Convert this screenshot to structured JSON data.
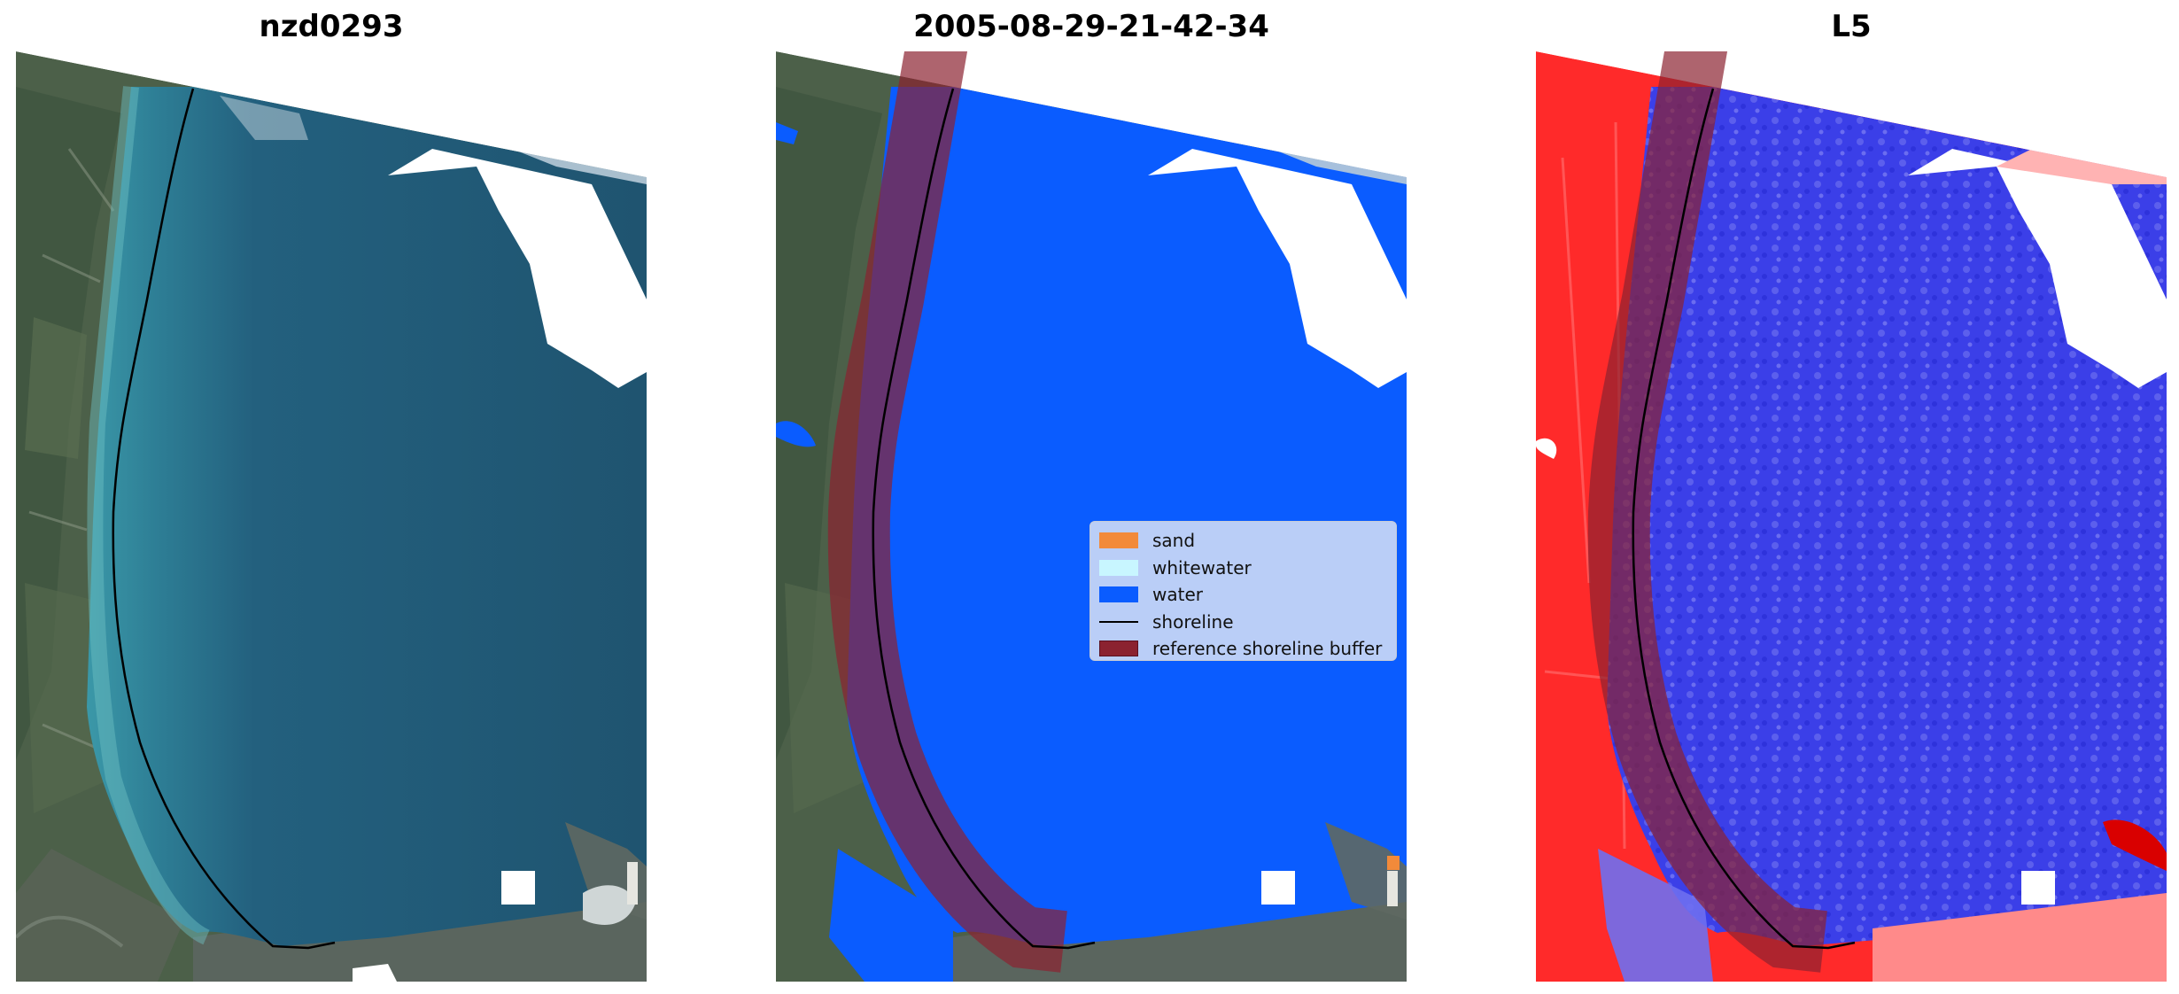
{
  "panels": [
    {
      "title": "nzd0293"
    },
    {
      "title": "2005-08-29-21-42-34"
    },
    {
      "title": "L5"
    }
  ],
  "legend": {
    "items": [
      {
        "label": "sand",
        "color": "#f28a3a",
        "kind": "patch"
      },
      {
        "label": "whitewater",
        "color": "#c8f6ff",
        "kind": "patch"
      },
      {
        "label": "water",
        "color": "#0a5cff",
        "kind": "patch"
      },
      {
        "label": "shoreline",
        "color": "#000000",
        "kind": "line"
      },
      {
        "label": "reference shoreline buffer",
        "color": "#8b2230",
        "kind": "patch"
      }
    ]
  },
  "colors": {
    "water_class": "#0a5cff",
    "buffer": "#8b2230",
    "land_index": "#ff2a2a",
    "water_index": "#3a38e6",
    "sea_rgb": "#245b78",
    "land_rgb": "#4b5f48"
  }
}
